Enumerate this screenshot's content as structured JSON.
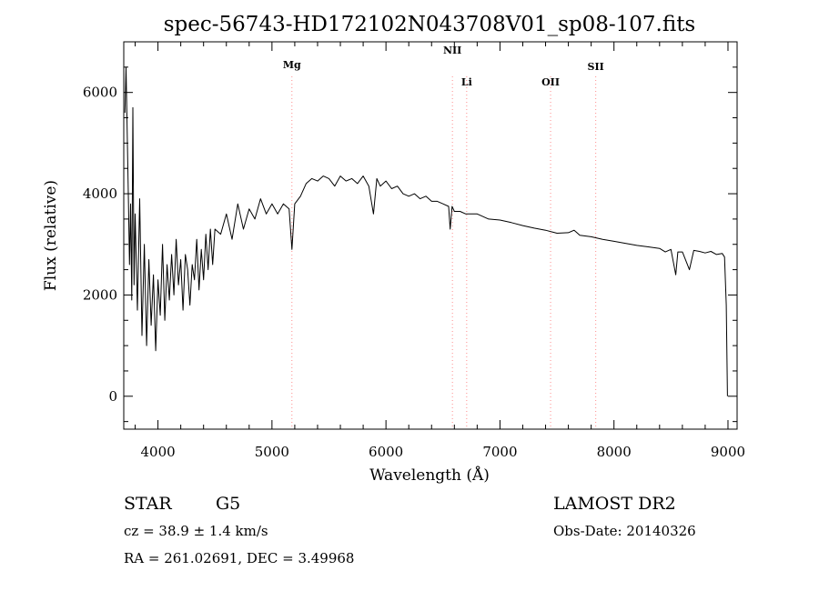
{
  "chart_data": {
    "type": "line",
    "title": "spec-56743-HD172102N043708V01_sp08-107.fits",
    "xlabel": "Wavelength (Å)",
    "ylabel": "Flux (relative)",
    "xlim": [
      3700,
      9080
    ],
    "ylim": [
      -650,
      7000
    ],
    "xticks": [
      4000,
      5000,
      6000,
      7000,
      8000,
      9000
    ],
    "yticks": [
      0,
      2000,
      4000,
      6000
    ],
    "grid": false,
    "line_color": "#000000",
    "marker_color": "#ff8c8c",
    "spectral_lines": [
      {
        "label": "Mg",
        "wavelength": 5175
      },
      {
        "label": "NII",
        "wavelength": 6583
      },
      {
        "label": "Li",
        "wavelength": 6708
      },
      {
        "label": "OII",
        "wavelength": 7444
      },
      {
        "label": "SII",
        "wavelength": 7840
      }
    ],
    "series": [
      {
        "x": [
          3710,
          3720,
          3730,
          3740,
          3750,
          3760,
          3770,
          3780,
          3790,
          3800,
          3820,
          3840,
          3860,
          3880,
          3900,
          3920,
          3940,
          3960,
          3980,
          4000,
          4020,
          4040,
          4060,
          4080,
          4100,
          4120,
          4140,
          4160,
          4180,
          4200,
          4220,
          4240,
          4260,
          4280,
          4300,
          4320,
          4340,
          4360,
          4380,
          4400,
          4420,
          4440,
          4460,
          4480,
          4500,
          4550,
          4600,
          4650,
          4700,
          4750,
          4800,
          4850,
          4900,
          4950,
          5000,
          5050,
          5100,
          5150,
          5175,
          5200,
          5250,
          5300,
          5350,
          5400,
          5450,
          5500,
          5550,
          5600,
          5650,
          5700,
          5750,
          5800,
          5850,
          5890,
          5920,
          5950,
          6000,
          6050,
          6100,
          6150,
          6200,
          6250,
          6300,
          6350,
          6400,
          6450,
          6500,
          6550,
          6563,
          6580,
          6600,
          6650,
          6700,
          6800,
          6900,
          7000,
          7100,
          7200,
          7300,
          7400,
          7500,
          7600,
          7650,
          7700,
          7800,
          7900,
          8000,
          8100,
          8200,
          8300,
          8400,
          8450,
          8500,
          8542,
          8560,
          8600,
          8662,
          8700,
          8750,
          8800,
          8850,
          8900,
          8950,
          8970,
          8985,
          8995
        ],
        "y": [
          5600,
          6500,
          5200,
          4000,
          2600,
          3800,
          1900,
          5700,
          2200,
          3600,
          1700,
          3900,
          1200,
          3000,
          1000,
          2700,
          1400,
          2400,
          900,
          2300,
          1600,
          3000,
          1500,
          2600,
          1900,
          2800,
          2000,
          3100,
          2200,
          2700,
          1700,
          2800,
          2500,
          1800,
          2600,
          2300,
          3100,
          2100,
          2900,
          2300,
          3200,
          2500,
          3300,
          2600,
          3300,
          3200,
          3600,
          3100,
          3800,
          3300,
          3700,
          3500,
          3900,
          3600,
          3800,
          3600,
          3800,
          3700,
          2900,
          3800,
          3950,
          4200,
          4300,
          4250,
          4350,
          4300,
          4150,
          4350,
          4250,
          4300,
          4200,
          4350,
          4150,
          3600,
          4300,
          4150,
          4250,
          4100,
          4150,
          4000,
          3950,
          4000,
          3900,
          3950,
          3850,
          3850,
          3800,
          3750,
          3300,
          3750,
          3650,
          3650,
          3600,
          3600,
          3500,
          3480,
          3430,
          3370,
          3320,
          3280,
          3220,
          3230,
          3280,
          3180,
          3150,
          3100,
          3060,
          3020,
          2980,
          2950,
          2920,
          2850,
          2900,
          2400,
          2850,
          2850,
          2500,
          2880,
          2860,
          2830,
          2860,
          2800,
          2820,
          2750,
          1800,
          0
        ]
      }
    ]
  },
  "footer": {
    "object_class": "STAR",
    "subclass": "G5",
    "survey": "LAMOST DR2",
    "cz": "cz = 38.9 ± 1.4 km/s",
    "obs_date": "Obs-Date: 20140326",
    "coords": "RA = 261.02691, DEC =   3.49968"
  }
}
